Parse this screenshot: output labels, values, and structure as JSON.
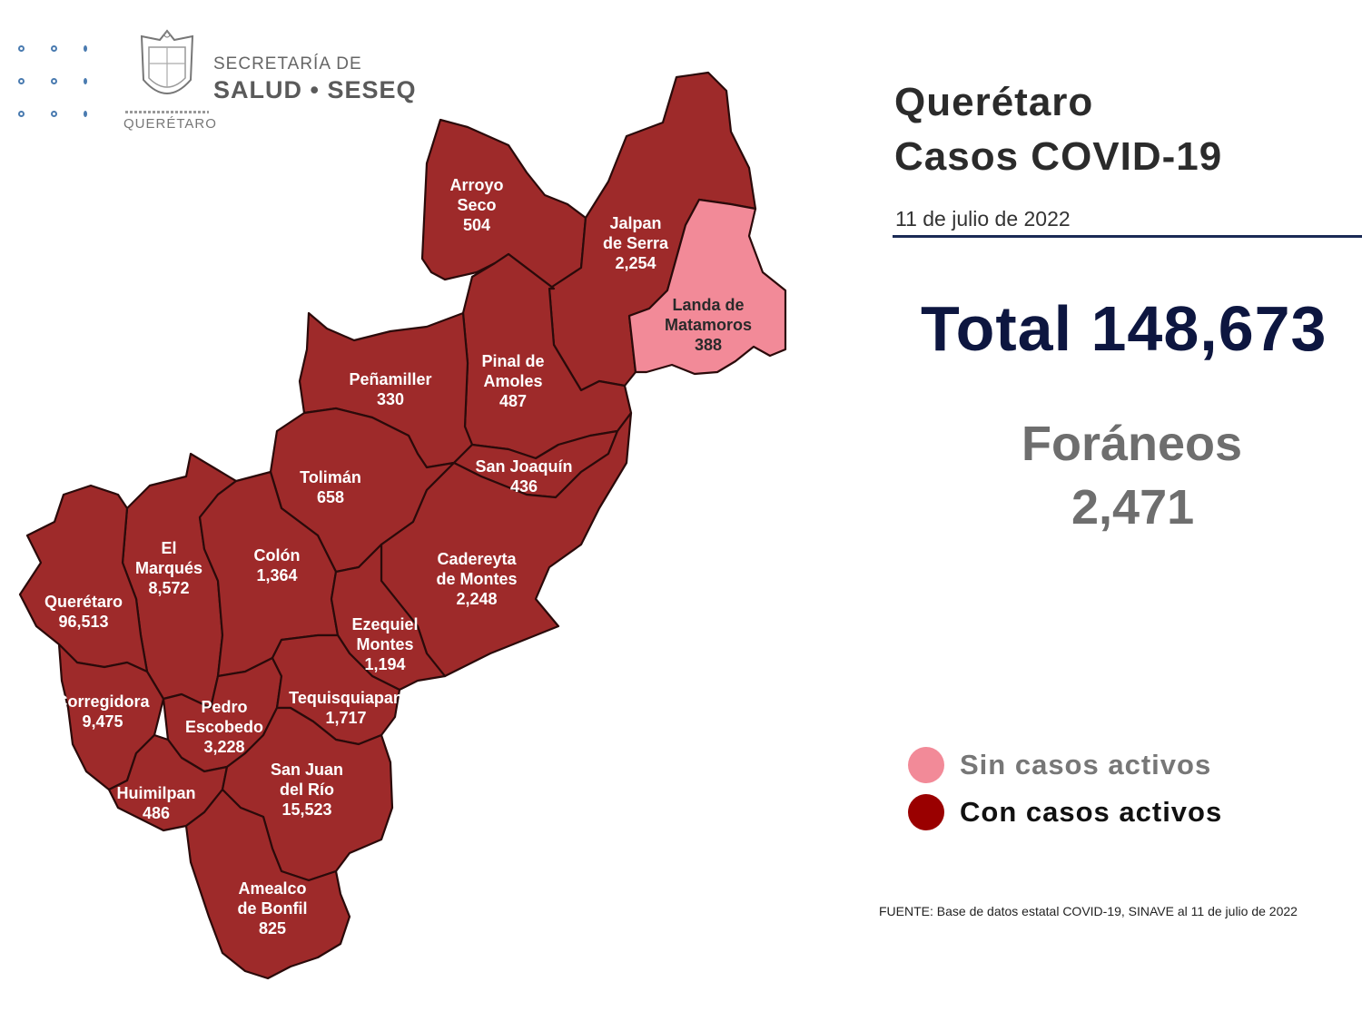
{
  "header": {
    "org_line1": "SECRETARÍA DE",
    "org_line2": "SALUD • SESEQ",
    "state": "QUERÉTARO"
  },
  "title": {
    "line1": "Querétaro",
    "line2": "Casos COVID-19",
    "date": "11 de julio  de 2022"
  },
  "summary": {
    "total": "Total 148,673",
    "foraneos_label": "Foráneos",
    "foraneos_value": "2,471"
  },
  "legend": {
    "inactive_label": "Sin casos activos",
    "inactive_color": "#f28a98",
    "inactive_text_color": "#777777",
    "active_label": "Con casos activos",
    "active_color": "#9a0000",
    "active_text_color": "#111111"
  },
  "source": "FUENTE: Base de datos estatal  COVID-19,  SINAVE  al 11 de julio de 2022",
  "colors": {
    "active_fill": "#9e2a2a",
    "inactive_fill": "#f28a98"
  },
  "map": {
    "municipalities": [
      {
        "id": "arroyo-seco",
        "name_lines": [
          "Arroyo",
          "Seco"
        ],
        "cases": "504",
        "active": true
      },
      {
        "id": "jalpan",
        "name_lines": [
          "Jalpan",
          "de Serra"
        ],
        "cases": "2,254",
        "active": true
      },
      {
        "id": "landa",
        "name_lines": [
          "Landa de",
          "Matamoros"
        ],
        "cases": "388",
        "active": false
      },
      {
        "id": "pinal",
        "name_lines": [
          "Pinal de",
          "Amoles"
        ],
        "cases": "487",
        "active": true
      },
      {
        "id": "penamiller",
        "name_lines": [
          "Peñamiller"
        ],
        "cases": "330",
        "active": true
      },
      {
        "id": "san-joaquin",
        "name_lines": [
          "San Joaquín"
        ],
        "cases": "436",
        "active": true
      },
      {
        "id": "toliman",
        "name_lines": [
          "Tolimán"
        ],
        "cases": "658",
        "active": true
      },
      {
        "id": "cadereyta",
        "name_lines": [
          "Cadereyta",
          "de Montes"
        ],
        "cases": "2,248",
        "active": true
      },
      {
        "id": "el-marques",
        "name_lines": [
          "El",
          "Marqués"
        ],
        "cases": "8,572",
        "active": true
      },
      {
        "id": "colon",
        "name_lines": [
          "Colón"
        ],
        "cases": "1,364",
        "active": true
      },
      {
        "id": "queretaro",
        "name_lines": [
          "Querétaro"
        ],
        "cases": "96,513",
        "active": true
      },
      {
        "id": "ezequiel-montes",
        "name_lines": [
          "Ezequiel",
          "Montes"
        ],
        "cases": "1,194",
        "active": true
      },
      {
        "id": "corregidora",
        "name_lines": [
          "Corregidora"
        ],
        "cases": "9,475",
        "active": true
      },
      {
        "id": "pedro-escobedo",
        "name_lines": [
          "Pedro",
          "Escobedo"
        ],
        "cases": "3,228",
        "active": true
      },
      {
        "id": "tequisquiapan",
        "name_lines": [
          "Tequisquiapan"
        ],
        "cases": "1,717",
        "active": true
      },
      {
        "id": "huimilpan",
        "name_lines": [
          "Huimilpan"
        ],
        "cases": "486",
        "active": true
      },
      {
        "id": "san-juan-del-rio",
        "name_lines": [
          "San Juan",
          "del Río"
        ],
        "cases": "15,523",
        "active": true
      },
      {
        "id": "amealco",
        "name_lines": [
          "Amealco",
          "de Bonfil"
        ],
        "cases": "825",
        "active": true
      }
    ]
  }
}
